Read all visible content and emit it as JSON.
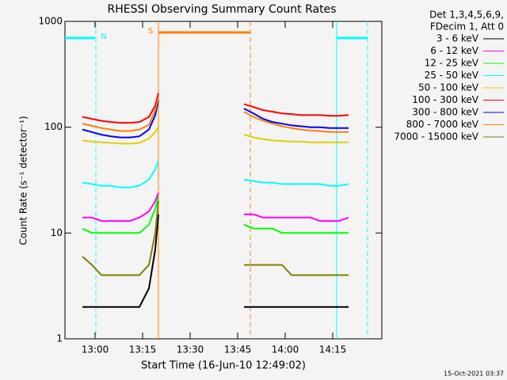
{
  "chart_data": {
    "type": "line",
    "title": "RHESSI Observing Summary Count Rates",
    "xlabel": "Start Time (16-Jun-10 12:49:02)",
    "ylabel": "Count Rate (s⁻¹ detector⁻¹)",
    "footer": "15-Oct-2021 03:37",
    "legend_title": [
      "Det 1,3,4,5,6,9,",
      "FDecim 1, Att 0"
    ],
    "log_scale": true,
    "xlim": [
      "12:50:30",
      "14:30:30"
    ],
    "xticks": [
      "13:00",
      "13:15",
      "13:30",
      "13:45",
      "14:00",
      "14:15"
    ],
    "ylim": [
      1,
      1000
    ],
    "yticks": [
      1,
      10,
      100,
      1000
    ],
    "x": [
      "12:56",
      "12:59",
      "13:02",
      "13:05",
      "13:08",
      "13:11",
      "13:14",
      "13:17",
      "13:19",
      "13:20",
      "13:33",
      "13:47",
      "13:50",
      "13:53",
      "13:56",
      "13:59",
      "14:02",
      "14:05",
      "14:08",
      "14:11",
      "14:14",
      "14:17",
      "14:20"
    ],
    "series": [
      {
        "name": "3 - 6 keV",
        "color": "#000000",
        "values": [
          2,
          2,
          2,
          2,
          2,
          2,
          2,
          3,
          7,
          15,
          null,
          2,
          2,
          2,
          2,
          2,
          2,
          2,
          2,
          2,
          2,
          2,
          2
        ]
      },
      {
        "name": "6 - 12 keV",
        "color": "#ff00ff",
        "values": [
          14,
          14,
          13,
          13,
          13,
          13,
          14,
          16,
          20,
          24,
          null,
          15,
          15,
          14,
          14,
          14,
          14,
          14,
          14,
          13,
          13,
          13,
          14
        ]
      },
      {
        "name": "12 - 25 keV",
        "color": "#00ff00",
        "values": [
          11,
          10,
          10,
          10,
          10,
          10,
          10,
          12,
          17,
          22,
          null,
          12,
          11,
          11,
          11,
          10,
          10,
          10,
          10,
          10,
          10,
          10,
          10
        ]
      },
      {
        "name": "25 - 50 keV",
        "color": "#00ffff",
        "values": [
          30,
          29,
          28,
          28,
          27,
          27,
          28,
          32,
          40,
          48,
          null,
          32,
          31,
          30,
          30,
          29,
          29,
          29,
          29,
          29,
          28,
          28,
          29
        ]
      },
      {
        "name": "50 - 100 keV",
        "color": "#e0d000",
        "values": [
          75,
          73,
          72,
          71,
          70,
          70,
          71,
          78,
          90,
          100,
          null,
          85,
          80,
          77,
          75,
          74,
          73,
          73,
          72,
          72,
          72,
          72,
          72
        ]
      },
      {
        "name": "100 - 300 keV",
        "color": "#ff0000",
        "values": [
          125,
          120,
          115,
          112,
          110,
          110,
          112,
          125,
          160,
          210,
          null,
          165,
          155,
          145,
          140,
          135,
          133,
          130,
          130,
          130,
          128,
          128,
          130
        ]
      },
      {
        "name": "300 - 800 keV",
        "color": "#0000ff",
        "values": [
          95,
          90,
          85,
          82,
          80,
          80,
          82,
          95,
          130,
          180,
          null,
          150,
          135,
          120,
          112,
          108,
          104,
          102,
          100,
          100,
          98,
          98,
          98
        ]
      },
      {
        "name": "800 - 7000 keV",
        "color": "#ff8000",
        "values": [
          108,
          103,
          98,
          95,
          92,
          92,
          95,
          105,
          145,
          190,
          null,
          140,
          125,
          115,
          108,
          102,
          98,
          95,
          93,
          92,
          90,
          90,
          90
        ]
      },
      {
        "name": "7000 - 15000 keV",
        "color": "#808000",
        "values": [
          6,
          5,
          4,
          4,
          4,
          4,
          4,
          5,
          10,
          20,
          null,
          5,
          5,
          5,
          5,
          5,
          4,
          4,
          4,
          4,
          4,
          4,
          4
        ]
      }
    ],
    "night": {
      "label": "N",
      "color": "#00ffff",
      "bars": [
        [
          "12:50:30",
          "13:00:00"
        ],
        [
          "14:16:15",
          "14:26:00"
        ]
      ],
      "solid": [
        "14:16:15"
      ],
      "dashed": [
        "13:00:15",
        "14:26:00"
      ]
    },
    "saa": {
      "label": "S",
      "color": "#ff8000",
      "bars": [
        [
          "13:20:00",
          "13:49:00"
        ]
      ],
      "solid": [
        "13:20:00"
      ],
      "dashed": [
        "13:49:00"
      ]
    }
  }
}
